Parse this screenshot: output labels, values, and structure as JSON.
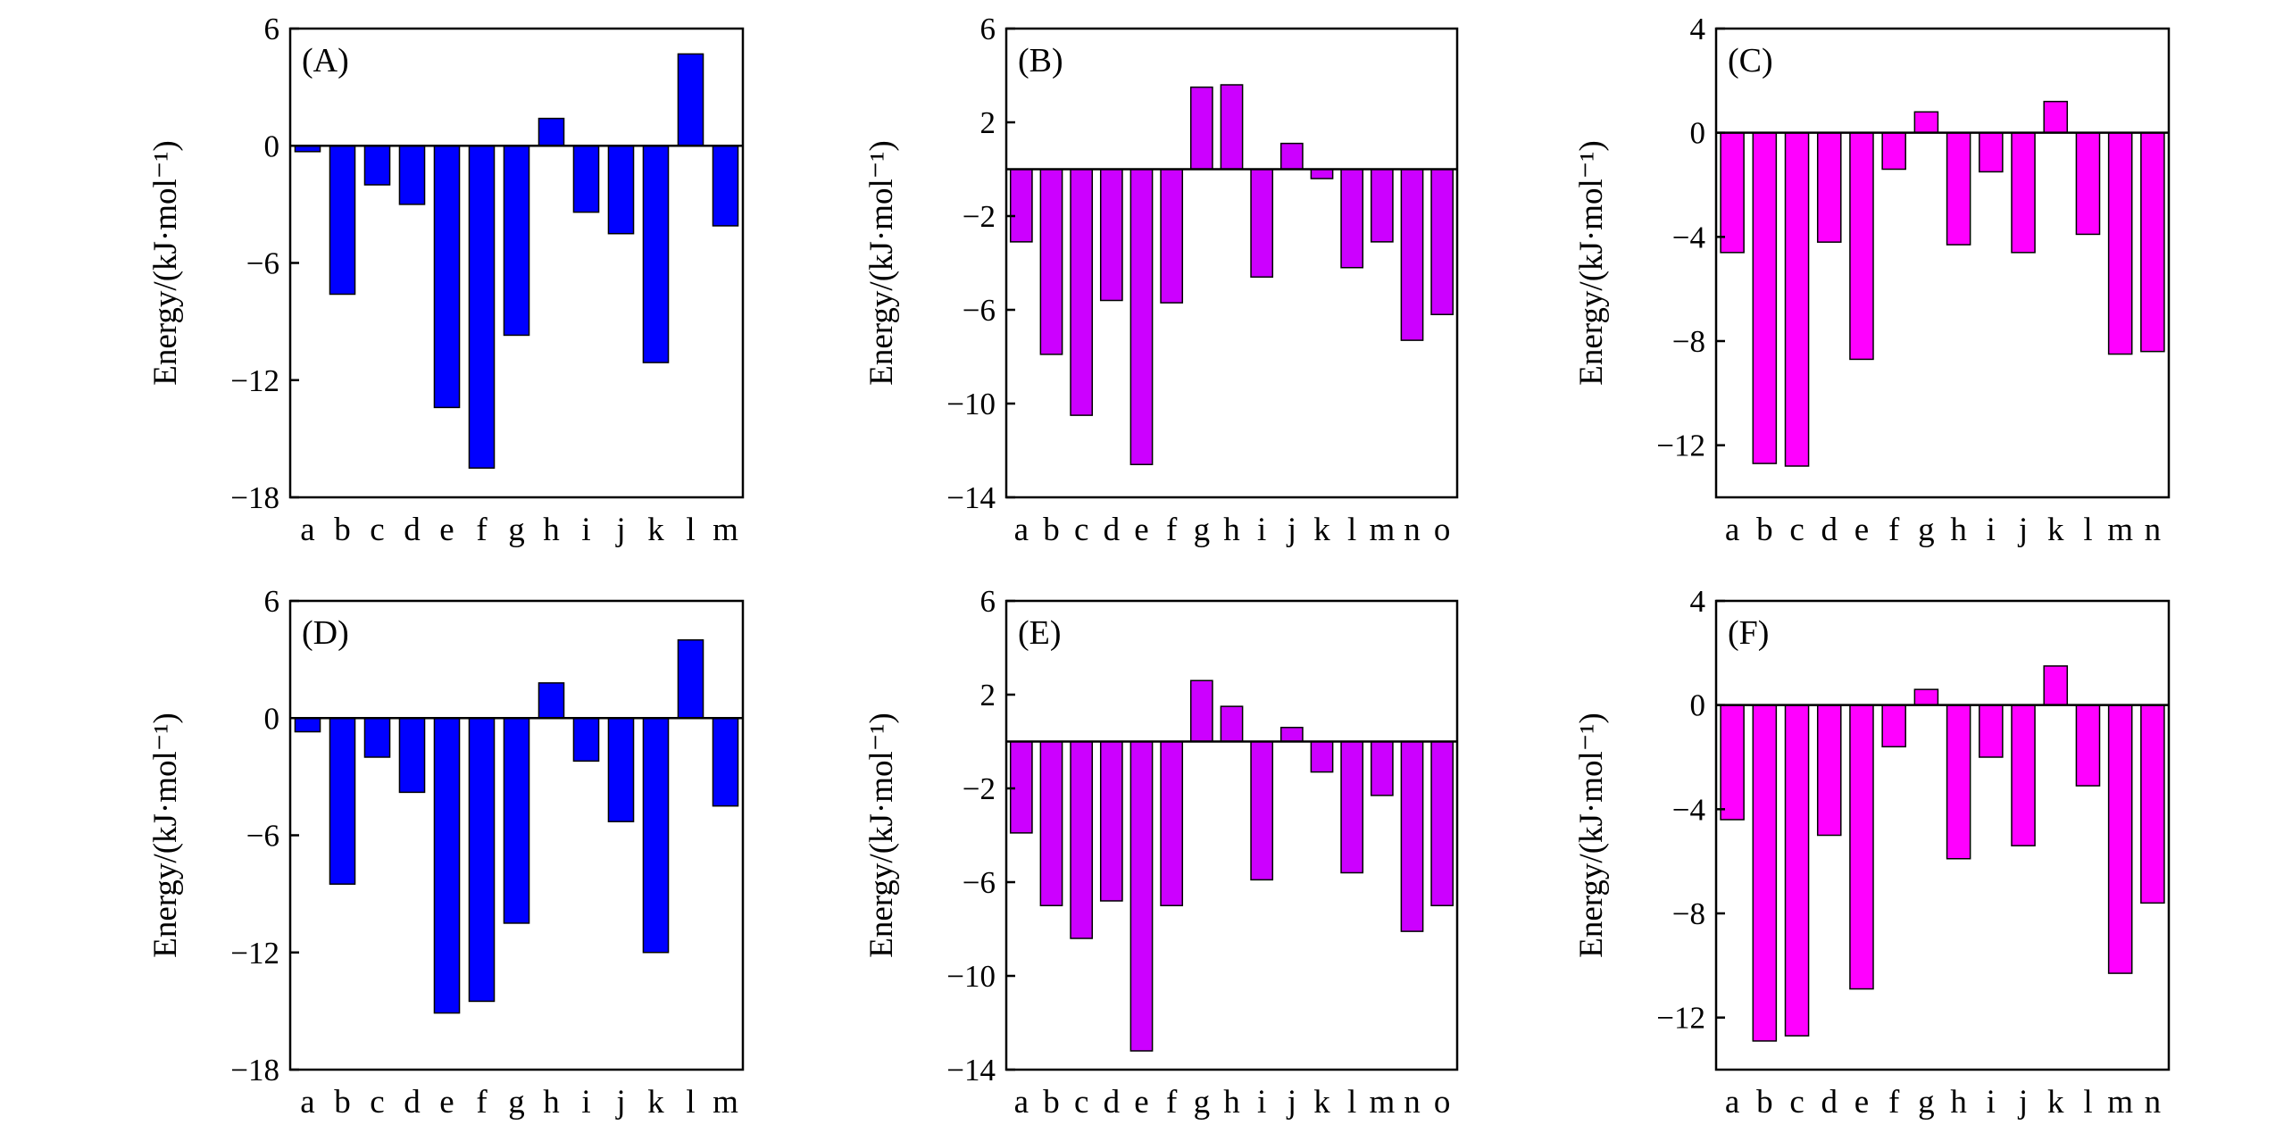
{
  "chart_data": [
    {
      "panel": "(A)",
      "type": "bar",
      "color": "#0000ff",
      "ylabel": "Energy/(kJ·mol⁻¹)",
      "ylim": [
        -18,
        6
      ],
      "yticks": [
        6,
        0,
        -6,
        -12,
        -18
      ],
      "categories": [
        "a",
        "b",
        "c",
        "d",
        "e",
        "f",
        "g",
        "h",
        "i",
        "j",
        "k",
        "l",
        "m"
      ],
      "values": [
        -0.3,
        -7.6,
        -2.0,
        -3.0,
        -13.4,
        -16.5,
        -9.7,
        1.4,
        -3.4,
        -4.5,
        -11.1,
        4.7,
        -4.1
      ]
    },
    {
      "panel": "(B)",
      "type": "bar",
      "color": "#cc00ff",
      "ylabel": "Energy/(kJ·mol⁻¹)",
      "ylim": [
        -14,
        6
      ],
      "yticks": [
        6,
        2,
        -2,
        -6,
        -10,
        -14
      ],
      "categories": [
        "a",
        "b",
        "c",
        "d",
        "e",
        "f",
        "g",
        "h",
        "i",
        "j",
        "k",
        "l",
        "m",
        "n",
        "o"
      ],
      "values": [
        -3.1,
        -7.9,
        -10.5,
        -5.6,
        -12.6,
        -5.7,
        3.5,
        3.6,
        -4.6,
        1.1,
        -0.4,
        -4.2,
        -3.1,
        -7.3,
        -6.2
      ]
    },
    {
      "panel": "(C)",
      "type": "bar",
      "color": "#ff00ff",
      "ylabel": "Energy/(kJ·mol⁻¹)",
      "ylim": [
        -14,
        4
      ],
      "yticks": [
        4,
        0,
        -4,
        -8,
        -12
      ],
      "categories": [
        "a",
        "b",
        "c",
        "d",
        "e",
        "f",
        "g",
        "h",
        "i",
        "j",
        "k",
        "l",
        "m",
        "n"
      ],
      "values": [
        -4.6,
        -12.7,
        -12.8,
        -4.2,
        -8.7,
        -1.4,
        0.8,
        -4.3,
        -1.5,
        -4.6,
        1.2,
        -3.9,
        -8.5,
        -8.4
      ]
    },
    {
      "panel": "(D)",
      "type": "bar",
      "color": "#0000ff",
      "ylabel": "Energy/(kJ·mol⁻¹)",
      "ylim": [
        -18,
        6
      ],
      "yticks": [
        6,
        0,
        -6,
        -12,
        -18
      ],
      "categories": [
        "a",
        "b",
        "c",
        "d",
        "e",
        "f",
        "g",
        "h",
        "i",
        "j",
        "k",
        "l",
        "m"
      ],
      "values": [
        -0.7,
        -8.5,
        -2.0,
        -3.8,
        -15.1,
        -14.5,
        -10.5,
        1.8,
        -2.2,
        -5.3,
        -12.0,
        4.0,
        -4.5
      ]
    },
    {
      "panel": "(E)",
      "type": "bar",
      "color": "#cc00ff",
      "ylabel": "Energy/(kJ·mol⁻¹)",
      "ylim": [
        -14,
        6
      ],
      "yticks": [
        6,
        2,
        -2,
        -6,
        -10,
        -14
      ],
      "categories": [
        "a",
        "b",
        "c",
        "d",
        "e",
        "f",
        "g",
        "h",
        "i",
        "j",
        "k",
        "l",
        "m",
        "n",
        "o"
      ],
      "values": [
        -3.9,
        -7.0,
        -8.4,
        -6.8,
        -13.2,
        -7.0,
        2.6,
        1.5,
        -5.9,
        0.6,
        -1.3,
        -5.6,
        -2.3,
        -8.1,
        -7.0
      ]
    },
    {
      "panel": "(F)",
      "type": "bar",
      "color": "#ff00ff",
      "ylabel": "Energy/(kJ·mol⁻¹)",
      "ylim": [
        -14,
        4
      ],
      "yticks": [
        4,
        0,
        -4,
        -8,
        -12
      ],
      "categories": [
        "a",
        "b",
        "c",
        "d",
        "e",
        "f",
        "g",
        "h",
        "i",
        "j",
        "k",
        "l",
        "m",
        "n"
      ],
      "values": [
        -4.4,
        -12.9,
        -12.7,
        -5.0,
        -10.9,
        -1.6,
        0.6,
        -5.9,
        -2.0,
        -5.4,
        1.5,
        -3.1,
        -10.3,
        -7.6
      ]
    }
  ]
}
